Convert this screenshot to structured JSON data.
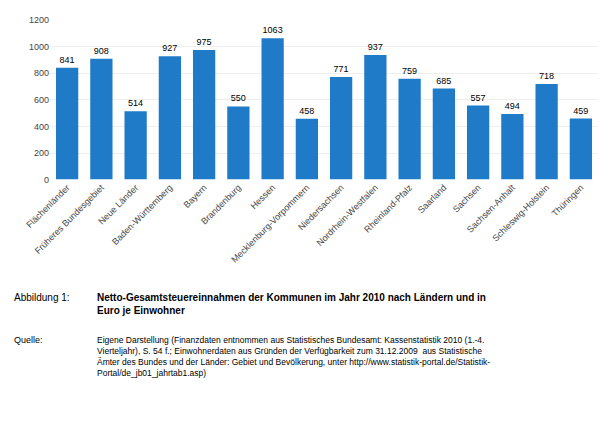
{
  "chart_data": {
    "type": "bar",
    "title": "Netto-Gesamtsteuereinnahmen der Kommunen im Jahr 2010 nach Ländern und in\nEuro je Einwohner",
    "categories": [
      "Flächenländer",
      "Früheres Bundesgebiet",
      "Neue Länder",
      "Baden-Württemberg",
      "Bayern",
      "Brandenburg",
      "Hessen",
      "Mecklenburg-Vorpommern",
      "Niedersachsen",
      "Nordrhein-Westfalen",
      "Rheinland-Pfalz",
      "Saarland",
      "Sachsen",
      "Sachsen-Anhalt",
      "Schleswig-Holstein",
      "Thüringen"
    ],
    "values": [
      841,
      908,
      514,
      927,
      975,
      550,
      1063,
      458,
      771,
      937,
      759,
      685,
      557,
      494,
      718,
      459
    ],
    "color": "#1F7BC8",
    "ylim": [
      0,
      1200
    ],
    "yticks": [
      0,
      200,
      400,
      600,
      800,
      1000,
      1200
    ],
    "grid": true,
    "data_labels": true,
    "annotations": [
      "Abbildung 1:",
      "Quelle:",
      "Eigene Darstellung (Finanzdaten entnommen aus Statistisches Bundesamt: Kassenstatistik 2010 (1.-4.\nVierteljahr), S. 54 f.; Einwohnerdaten aus Gründen der Verfügbarkeit zum 31.12.2009  aus Statistische\nÄmter des Bundes und der Länder: Gebiet und Bevölkerung, unter http://www.statistik-portal.de/Statistik-\nPortal/de_jb01_jahrtab1.asp)"
    ]
  }
}
